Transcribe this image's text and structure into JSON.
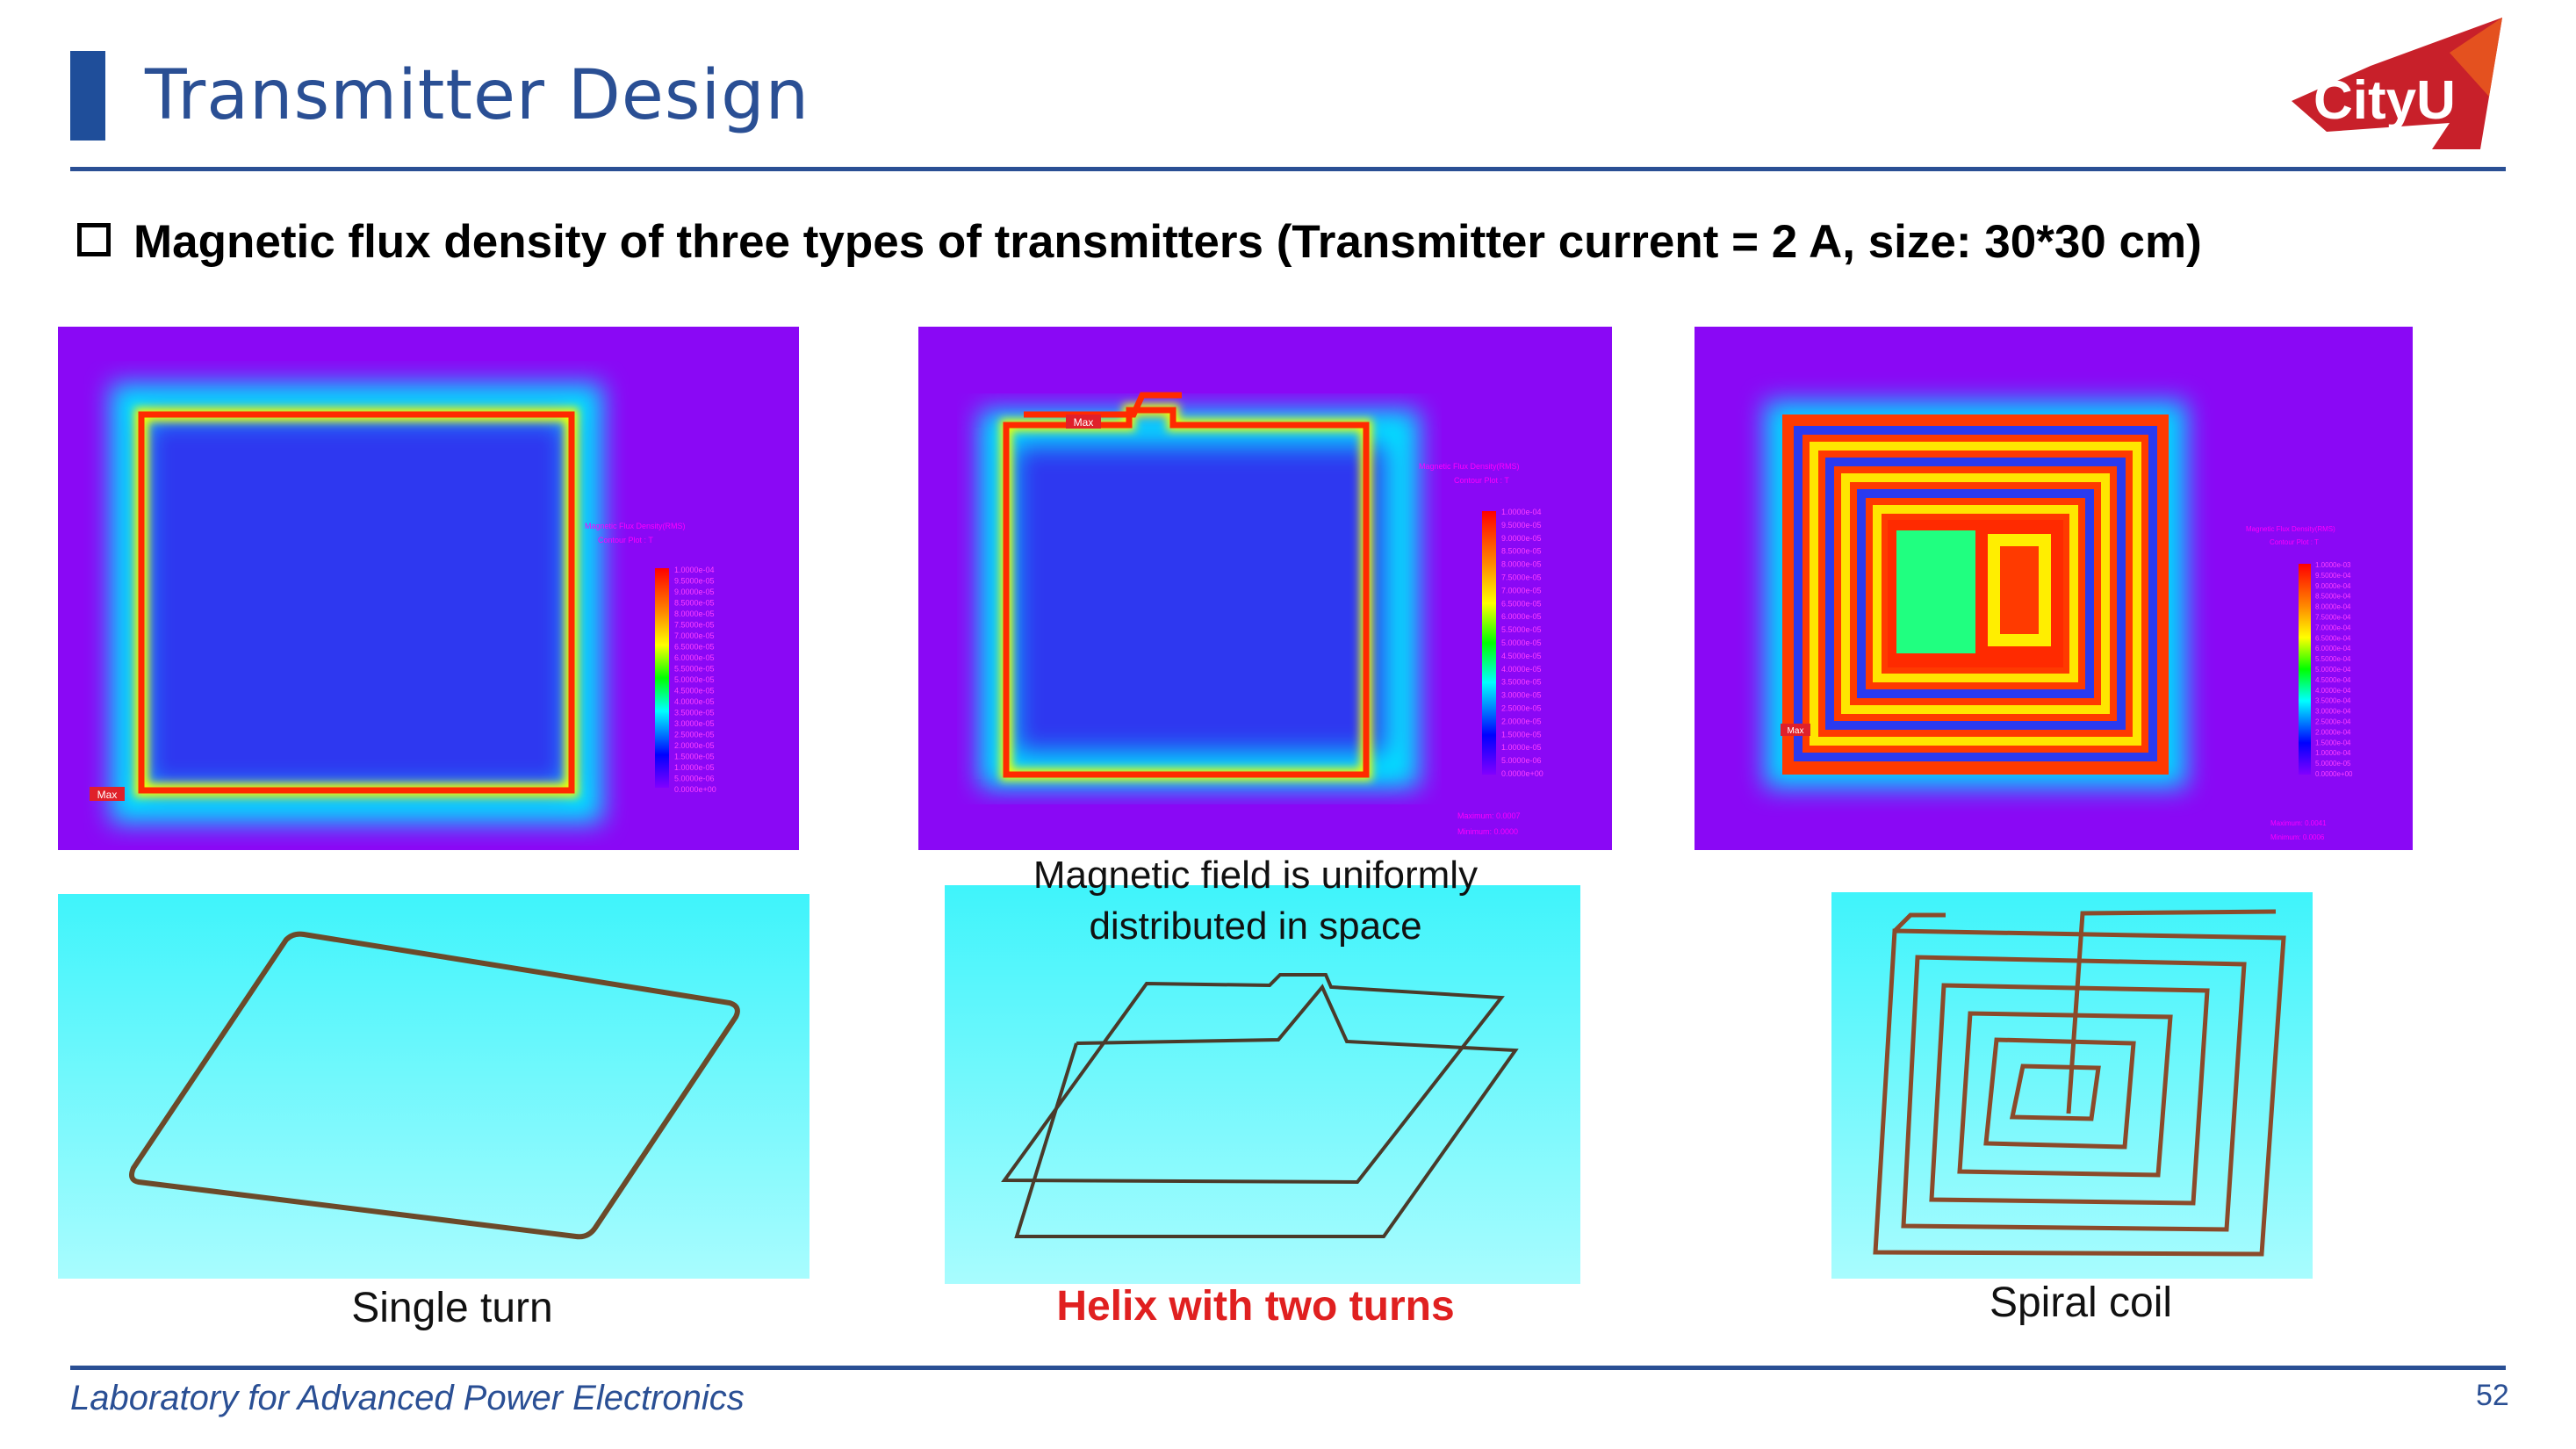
{
  "header": {
    "title": "Transmitter Design"
  },
  "logo": {
    "text": "CityU"
  },
  "subtitle": "Magnetic flux density of three types of transmitters (Transmitter current = 2 A, size: 30*30 cm)",
  "legend": {
    "title": "Magnetic Flux Density(RMS)",
    "subtitle": "Contour Plot : T",
    "ticks_1e4": [
      "1.0000e-04",
      "9.5000e-05",
      "9.0000e-05",
      "8.5000e-05",
      "8.0000e-05",
      "7.5000e-05",
      "7.0000e-05",
      "6.5000e-05",
      "6.0000e-05",
      "5.5000e-05",
      "5.0000e-05",
      "4.5000e-05",
      "4.0000e-05",
      "3.5000e-05",
      "3.0000e-05",
      "2.5000e-05",
      "2.0000e-05",
      "1.5000e-05",
      "1.0000e-05",
      "5.0000e-06",
      "0.0000e+00"
    ],
    "ticks_1e3": [
      "1.0000e-03",
      "9.5000e-04",
      "9.0000e-04",
      "8.5000e-04",
      "8.0000e-04",
      "7.5000e-04",
      "7.0000e-04",
      "6.5000e-04",
      "6.0000e-04",
      "5.5000e-04",
      "5.0000e-04",
      "4.5000e-04",
      "4.0000e-04",
      "3.5000e-04",
      "3.0000e-04",
      "2.5000e-04",
      "2.0000e-04",
      "1.5000e-04",
      "1.0000e-04",
      "5.0000e-05",
      "0.0000e+00"
    ]
  },
  "sims": {
    "single": {
      "max_label": "Max"
    },
    "helix": {
      "max_label": "Max",
      "maximum": "Maximum: 0.0007",
      "minimum": "Minimum: 0.0000"
    },
    "spiral": {
      "max_label": "Max",
      "maximum": "Maximum: 0.0041",
      "minimum": "Minimum: 0.0006"
    }
  },
  "captions": {
    "single": "Single turn",
    "helix": "Helix with two turns",
    "spiral": "Spiral coil"
  },
  "note_lines": [
    "Magnetic field is uniformly",
    "distributed in space"
  ],
  "footer": {
    "lab": "Laboratory for Advanced Power Electronics",
    "page": "52"
  },
  "colors": {
    "accent": "#2a4f94",
    "highlight": "#e02020",
    "sim_background": "#8a08f5",
    "cad_background": "#4ef5fb"
  }
}
